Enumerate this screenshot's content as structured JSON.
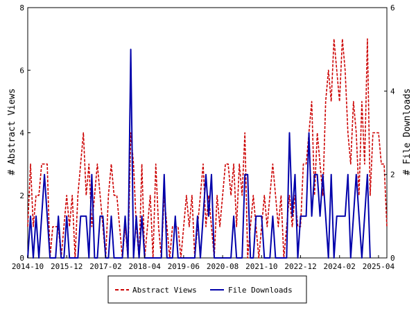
{
  "chart_data": {
    "type": "line",
    "ylabel_left": "# Abstract Views",
    "ylabel_right": "# File Downloads",
    "x_ticks": [
      "2014-10",
      "2015-12",
      "2017-02",
      "2018-04",
      "2019-06",
      "2020-08",
      "2021-10",
      "2022-12",
      "2024-02",
      "2025-04"
    ],
    "ylim_left": [
      0,
      8
    ],
    "yticks_left": [
      "0",
      "2",
      "4",
      "6",
      "8"
    ],
    "ylim_right": [
      0,
      6
    ],
    "yticks_right": [
      "0",
      "2",
      "4",
      "6"
    ],
    "legend_position": "bottom-center",
    "grid": false,
    "series": [
      {
        "name": "Abstract Views",
        "axis": "left",
        "color": "#cc0000",
        "style": "dashed",
        "points": [
          [
            "2014-10",
            1
          ],
          [
            "2014-11",
            3
          ],
          [
            "2014-12",
            1
          ],
          [
            "2015-01",
            2
          ],
          [
            "2015-02",
            2
          ],
          [
            "2015-03",
            3
          ],
          [
            "2015-04",
            3
          ],
          [
            "2015-05",
            3
          ],
          [
            "2015-06",
            0
          ],
          [
            "2015-07",
            1
          ],
          [
            "2015-08",
            1
          ],
          [
            "2015-09",
            1
          ],
          [
            "2015-10",
            0
          ],
          [
            "2015-11",
            1
          ],
          [
            "2015-12",
            2
          ],
          [
            "2016-01",
            1
          ],
          [
            "2016-02",
            2
          ],
          [
            "2016-03",
            0
          ],
          [
            "2016-04",
            2
          ],
          [
            "2016-05",
            3
          ],
          [
            "2016-06",
            4
          ],
          [
            "2016-07",
            2
          ],
          [
            "2016-08",
            3
          ],
          [
            "2016-09",
            1
          ],
          [
            "2016-10",
            2
          ],
          [
            "2016-11",
            3
          ],
          [
            "2016-12",
            2
          ],
          [
            "2017-01",
            1
          ],
          [
            "2017-02",
            0
          ],
          [
            "2017-03",
            2
          ],
          [
            "2017-04",
            3
          ],
          [
            "2017-05",
            2
          ],
          [
            "2017-06",
            2
          ],
          [
            "2017-07",
            1
          ],
          [
            "2017-08",
            0
          ],
          [
            "2017-09",
            1
          ],
          [
            "2017-10",
            0
          ],
          [
            "2017-11",
            4
          ],
          [
            "2017-12",
            3
          ],
          [
            "2018-01",
            1
          ],
          [
            "2018-02",
            0
          ],
          [
            "2018-03",
            3
          ],
          [
            "2018-04",
            0
          ],
          [
            "2018-05",
            1
          ],
          [
            "2018-06",
            2
          ],
          [
            "2018-07",
            0
          ],
          [
            "2018-08",
            3
          ],
          [
            "2018-09",
            1
          ],
          [
            "2018-10",
            0
          ],
          [
            "2018-11",
            2
          ],
          [
            "2018-12",
            1
          ],
          [
            "2019-01",
            0
          ],
          [
            "2019-02",
            1
          ],
          [
            "2019-03",
            1
          ],
          [
            "2019-04",
            1
          ],
          [
            "2019-05",
            0
          ],
          [
            "2019-06",
            1
          ],
          [
            "2019-07",
            2
          ],
          [
            "2019-08",
            1
          ],
          [
            "2019-09",
            2
          ],
          [
            "2019-10",
            0
          ],
          [
            "2019-11",
            1
          ],
          [
            "2019-12",
            2
          ],
          [
            "2020-01",
            3
          ],
          [
            "2020-02",
            1
          ],
          [
            "2020-03",
            2
          ],
          [
            "2020-04",
            1
          ],
          [
            "2020-05",
            0
          ],
          [
            "2020-06",
            2
          ],
          [
            "2020-07",
            1
          ],
          [
            "2020-08",
            2
          ],
          [
            "2020-09",
            3
          ],
          [
            "2020-10",
            3
          ],
          [
            "2020-11",
            2
          ],
          [
            "2020-12",
            3
          ],
          [
            "2021-01",
            1
          ],
          [
            "2021-02",
            3
          ],
          [
            "2021-03",
            2
          ],
          [
            "2021-04",
            4
          ],
          [
            "2021-05",
            0
          ],
          [
            "2021-06",
            1
          ],
          [
            "2021-07",
            2
          ],
          [
            "2021-08",
            1
          ],
          [
            "2021-09",
            0
          ],
          [
            "2021-10",
            1
          ],
          [
            "2021-11",
            2
          ],
          [
            "2021-12",
            1
          ],
          [
            "2022-01",
            2
          ],
          [
            "2022-02",
            3
          ],
          [
            "2022-03",
            2
          ],
          [
            "2022-04",
            1
          ],
          [
            "2022-05",
            2
          ],
          [
            "2022-06",
            0
          ],
          [
            "2022-07",
            1
          ],
          [
            "2022-08",
            2
          ],
          [
            "2022-09",
            1
          ],
          [
            "2022-10",
            2
          ],
          [
            "2022-11",
            1
          ],
          [
            "2022-12",
            1
          ],
          [
            "2023-01",
            3
          ],
          [
            "2023-02",
            3
          ],
          [
            "2023-03",
            4
          ],
          [
            "2023-04",
            5
          ],
          [
            "2023-05",
            2
          ],
          [
            "2023-06",
            4
          ],
          [
            "2023-07",
            3
          ],
          [
            "2023-08",
            2
          ],
          [
            "2023-09",
            5
          ],
          [
            "2023-10",
            6
          ],
          [
            "2023-11",
            5
          ],
          [
            "2023-12",
            7
          ],
          [
            "2024-01",
            6
          ],
          [
            "2024-02",
            5
          ],
          [
            "2024-03",
            7
          ],
          [
            "2024-04",
            6
          ],
          [
            "2024-05",
            4
          ],
          [
            "2024-06",
            3
          ],
          [
            "2024-07",
            5
          ],
          [
            "2024-08",
            4
          ],
          [
            "2024-09",
            2
          ],
          [
            "2024-10",
            5
          ],
          [
            "2024-11",
            3
          ],
          [
            "2024-12",
            7
          ],
          [
            "2025-01",
            2
          ],
          [
            "2025-02",
            4
          ],
          [
            "2025-03",
            4
          ],
          [
            "2025-04",
            4
          ],
          [
            "2025-05",
            3
          ],
          [
            "2025-06",
            3
          ],
          [
            "2025-07",
            1
          ]
        ]
      },
      {
        "name": "File Downloads",
        "axis": "right",
        "color": "#0000aa",
        "style": "solid",
        "points": [
          [
            "2014-10",
            0
          ],
          [
            "2014-11",
            1
          ],
          [
            "2014-12",
            0
          ],
          [
            "2015-01",
            1
          ],
          [
            "2015-02",
            0
          ],
          [
            "2015-03",
            1
          ],
          [
            "2015-04",
            2
          ],
          [
            "2015-05",
            1
          ],
          [
            "2015-06",
            0
          ],
          [
            "2015-07",
            0
          ],
          [
            "2015-08",
            0
          ],
          [
            "2015-09",
            1
          ],
          [
            "2015-10",
            0
          ],
          [
            "2015-11",
            0
          ],
          [
            "2015-12",
            1
          ],
          [
            "2016-01",
            0
          ],
          [
            "2016-02",
            0
          ],
          [
            "2016-03",
            0
          ],
          [
            "2016-04",
            0
          ],
          [
            "2016-05",
            1
          ],
          [
            "2016-06",
            1
          ],
          [
            "2016-07",
            1
          ],
          [
            "2016-08",
            0
          ],
          [
            "2016-09",
            2
          ],
          [
            "2016-10",
            0
          ],
          [
            "2016-11",
            0
          ],
          [
            "2016-12",
            1
          ],
          [
            "2017-01",
            1
          ],
          [
            "2017-02",
            0
          ],
          [
            "2017-03",
            0
          ],
          [
            "2017-04",
            1
          ],
          [
            "2017-05",
            0
          ],
          [
            "2017-06",
            0
          ],
          [
            "2017-07",
            0
          ],
          [
            "2017-08",
            0
          ],
          [
            "2017-09",
            1
          ],
          [
            "2017-10",
            0
          ],
          [
            "2017-11",
            5
          ],
          [
            "2017-12",
            0
          ],
          [
            "2018-01",
            1
          ],
          [
            "2018-02",
            0
          ],
          [
            "2018-03",
            1
          ],
          [
            "2018-04",
            0
          ],
          [
            "2018-05",
            0
          ],
          [
            "2018-06",
            0
          ],
          [
            "2018-07",
            0
          ],
          [
            "2018-08",
            0
          ],
          [
            "2018-09",
            0
          ],
          [
            "2018-10",
            0
          ],
          [
            "2018-11",
            2
          ],
          [
            "2018-12",
            0
          ],
          [
            "2019-01",
            0
          ],
          [
            "2019-02",
            0
          ],
          [
            "2019-03",
            1
          ],
          [
            "2019-04",
            0
          ],
          [
            "2019-05",
            0
          ],
          [
            "2019-06",
            0
          ],
          [
            "2019-07",
            0
          ],
          [
            "2019-08",
            0
          ],
          [
            "2019-09",
            0
          ],
          [
            "2019-10",
            0
          ],
          [
            "2019-11",
            1
          ],
          [
            "2019-12",
            0
          ],
          [
            "2020-01",
            1
          ],
          [
            "2020-02",
            2
          ],
          [
            "2020-03",
            1
          ],
          [
            "2020-04",
            2
          ],
          [
            "2020-05",
            0
          ],
          [
            "2020-06",
            0
          ],
          [
            "2020-07",
            0
          ],
          [
            "2020-08",
            0
          ],
          [
            "2020-09",
            0
          ],
          [
            "2020-10",
            0
          ],
          [
            "2020-11",
            0
          ],
          [
            "2020-12",
            1
          ],
          [
            "2021-01",
            0
          ],
          [
            "2021-02",
            0
          ],
          [
            "2021-03",
            0
          ],
          [
            "2021-04",
            2
          ],
          [
            "2021-05",
            2
          ],
          [
            "2021-06",
            0
          ],
          [
            "2021-07",
            0
          ],
          [
            "2021-08",
            1
          ],
          [
            "2021-09",
            1
          ],
          [
            "2021-10",
            1
          ],
          [
            "2021-11",
            0
          ],
          [
            "2021-12",
            0
          ],
          [
            "2022-01",
            0
          ],
          [
            "2022-02",
            1
          ],
          [
            "2022-03",
            0
          ],
          [
            "2022-04",
            0
          ],
          [
            "2022-05",
            0
          ],
          [
            "2022-06",
            0
          ],
          [
            "2022-07",
            0
          ],
          [
            "2022-08",
            3
          ],
          [
            "2022-09",
            1
          ],
          [
            "2022-10",
            2
          ],
          [
            "2022-11",
            0
          ],
          [
            "2022-12",
            1
          ],
          [
            "2023-01",
            1
          ],
          [
            "2023-02",
            1
          ],
          [
            "2023-03",
            3
          ],
          [
            "2023-04",
            1
          ],
          [
            "2023-05",
            2
          ],
          [
            "2023-06",
            2
          ],
          [
            "2023-07",
            1
          ],
          [
            "2023-08",
            2
          ],
          [
            "2023-09",
            1
          ],
          [
            "2023-10",
            0
          ],
          [
            "2023-11",
            2
          ],
          [
            "2023-12",
            0
          ],
          [
            "2024-01",
            1
          ],
          [
            "2024-02",
            1
          ],
          [
            "2024-03",
            1
          ],
          [
            "2024-04",
            1
          ],
          [
            "2024-05",
            2
          ],
          [
            "2024-06",
            0
          ],
          [
            "2024-07",
            1
          ],
          [
            "2024-08",
            2
          ],
          [
            "2024-09",
            1
          ],
          [
            "2024-10",
            0
          ],
          [
            "2024-11",
            1
          ],
          [
            "2024-12",
            2
          ],
          [
            "2025-01",
            0
          ]
        ]
      }
    ]
  }
}
